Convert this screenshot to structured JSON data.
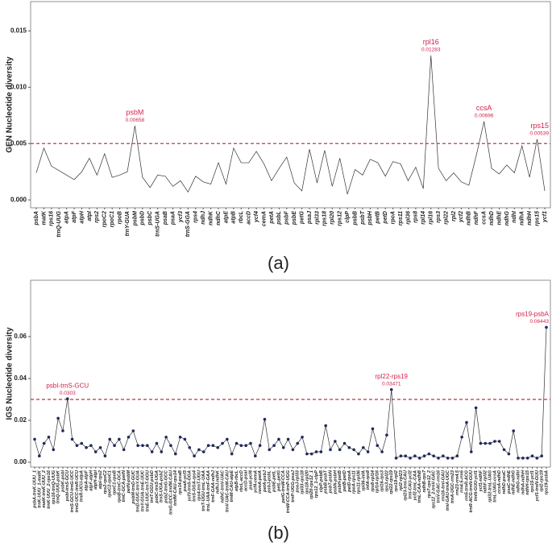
{
  "chart_data": [
    {
      "type": "line",
      "y_label": "GEN Nucleotide diversity",
      "caption": "(a)",
      "categories": [
        "psbA",
        "matK",
        "rps16",
        "trnQ-UUG",
        "atpA",
        "atpF",
        "atpH",
        "atpI",
        "rps2",
        "rpoC2",
        "rpoC1",
        "rpoB",
        "trnY-GUA",
        "psbM",
        "psbD",
        "psbC",
        "trnS-UGA",
        "psaB",
        "psaA",
        "ycf3",
        "trnS-GGA",
        "rps4",
        "ndhJ",
        "ndhK",
        "ndhC",
        "atpE",
        "atpB",
        "rbcL",
        "accD",
        "ycf4",
        "cemA",
        "petA",
        "psbL",
        "psbF",
        "psbE",
        "petG",
        "psaJ",
        "rpl33",
        "rps18",
        "rpl20",
        "rps12",
        "clpP",
        "psbB",
        "psbT",
        "psbH",
        "petB",
        "petD",
        "rpoA",
        "rps11",
        "rpl36",
        "rps8",
        "rpl14",
        "rpl16",
        "rps3",
        "rpl22",
        "rpl2",
        "ycf2",
        "ndhB",
        "ndhF",
        "ccsA",
        "ndhD",
        "ndhE",
        "ndhG",
        "ndhI",
        "ndhA",
        "ndhH",
        "rps15",
        "ycf1"
      ],
      "values": [
        0.0024,
        0.0046,
        0.003,
        0.0026,
        0.0022,
        0.0018,
        0.0025,
        0.0037,
        0.0022,
        0.0041,
        0.002,
        0.0022,
        0.0025,
        0.00658,
        0.002,
        0.0011,
        0.0022,
        0.0021,
        0.0012,
        0.0017,
        0.0007,
        0.0021,
        0.0016,
        0.0014,
        0.0033,
        0.0014,
        0.0046,
        0.0033,
        0.0033,
        0.0043,
        0.0032,
        0.0017,
        0.0028,
        0.0038,
        0.0015,
        0.0008,
        0.0045,
        0.0015,
        0.0044,
        0.0012,
        0.0037,
        0.0005,
        0.0027,
        0.0022,
        0.0036,
        0.0033,
        0.0021,
        0.0034,
        0.0032,
        0.0017,
        0.0029,
        0.001,
        0.01283,
        0.0028,
        0.0017,
        0.0024,
        0.0016,
        0.0013,
        0.004,
        0.00696,
        0.0028,
        0.0023,
        0.0031,
        0.0024,
        0.0048,
        0.002,
        0.00539,
        0.0008
      ],
      "color": "#333333",
      "annotation_color": "#d6204a",
      "threshold": 0.005,
      "threshold_color": "#b04050",
      "ylim": [
        -0.0007,
        0.0176
      ],
      "yticks": [
        {
          "value": 0,
          "label": "0.000"
        },
        {
          "value": 0.005,
          "label": "0.005"
        },
        {
          "value": 0.01,
          "label": "0.010"
        },
        {
          "value": 0.015,
          "label": "0.015"
        }
      ],
      "annotations": [
        {
          "text": "psbM"
        },
        {
          "text": "rpl16"
        },
        {
          "text": "ccsA"
        },
        {
          "text": "rps15"
        }
      ]
    },
    {
      "type": "line",
      "y_label": "IGS Nucleotide diversity",
      "caption": "(b)",
      "categories": [
        "psbA-trnK-UUU_1",
        "trnK-UUU_1-matK",
        "matK-trnK-UUU_2",
        "trnK-UUU_2-rps16",
        "rps16-trnQ-UUG",
        "trnQ-UUG-psbK",
        "psbK-psbI",
        "psbI-trnS-GCU",
        "trnS-GCU-trnG-UCC",
        "trnG-UCC-trnR-UCU",
        "trnR-UCU-atpA",
        "atpA-atpF",
        "atpF-atpH",
        "atpH-atpI",
        "atpI-rps2",
        "rps2-rpoC2",
        "rpoC2-rpoC1",
        "rpoC1-rpoB",
        "rpoB-trnC-GCA",
        "trnC-GCA-petN",
        "petN-psbM",
        "psbM-trnD-GUC",
        "trnD-GUC-trnY-GUA",
        "trnY-GUA-trnE-UUC",
        "trnE-UUC-trnT-GGU",
        "trnT-GGU-psbD",
        "psbC-trnS-UGA",
        "trnS-UGA-psbZ",
        "psbZ-trnG-GCC",
        "trnG-GCC-trnfM-CAU",
        "trnfM-CAU-rps14",
        "rps14-psaB",
        "psaA-ycf3",
        "ycf3-trnS-GGA",
        "trnS-GGA-rps4",
        "rps4-trnT-UGU",
        "trnT-UGU-trnL-UAA",
        "trnL-UAA-trnF-GAA",
        "trnF-GAA-ndhJ",
        "ndhJ-ndhK",
        "ndhC-trnV-UAC",
        "trnV-UAC-trnM-CAU",
        "trnM-CAU-atpE",
        "atpB-rbcL",
        "rbcL-accD",
        "accD-psaI",
        "psaI-ycf4",
        "ycf4-cemA",
        "cemA-petA",
        "petA-psbJ",
        "psbJ-psbL",
        "psbE-petL",
        "petL-petG",
        "petG-trnW-CCA",
        "trnW-CCA-trnP-UGG",
        "trnP-UGG-psaJ",
        "psaJ-rpl33",
        "rpl33-rps18",
        "rps18-rpl20",
        "rpl20-rps12_1",
        "rps12_1-clpP",
        "clpP-psbB",
        "psbB-psbT",
        "psbT-psbN",
        "psbN-psbH",
        "psbH-petB",
        "petB-petD",
        "petD-rpoA",
        "rpoA-rps11",
        "rps11-rpl36",
        "rpl36-infA",
        "infA-rps8",
        "rps8-rpl14",
        "rpl14-rpl16",
        "rpl16-rps3",
        "rps3-rpl22",
        "rpl22-rps19",
        "rps19-rpl2",
        "rpl2-rpl23",
        "rpl23-trnI-CAU",
        "trnI-CAU-ycf2",
        "ycf2-trnL-CAA",
        "trnL-CAA-ndhB",
        "ndhB-rps7",
        "rps7-rps12_2",
        "rps12_2-trnV-GAC",
        "trnV-GAC-rrn16",
        "rrn16-trnI-GAU",
        "trnI-GAU-trnA-UGC",
        "trnA-UGC-rrn23",
        "rrn23-rrn4.5",
        "rrn4.5-rrn5",
        "rrn5-trnR-ACG",
        "trnR-ACG-trnN-GUU",
        "trnN-GUU-ycf1",
        "ycf1-ndhF",
        "ndhF-rpl32",
        "rpl32-trnL-UAG",
        "trnL-UAG-ccsA",
        "ccsA-ndhD",
        "ndhD-psaC",
        "psaC-ndhE",
        "ndhE-ndhG",
        "ndhG-ndhI",
        "ndhA-ndhH",
        "ndhH-rps15",
        "rps15-ycf1",
        "ycf1-trnN-GUU",
        "rpl2-rps19",
        "rps19-psbA"
      ],
      "values": [
        0.011,
        0.003,
        0.009,
        0.012,
        0.006,
        0.021,
        0.015,
        0.0303,
        0.011,
        0.008,
        0.009,
        0.007,
        0.008,
        0.005,
        0.007,
        0.003,
        0.011,
        0.008,
        0.011,
        0.006,
        0.012,
        0.015,
        0.008,
        0.008,
        0.008,
        0.005,
        0.009,
        0.005,
        0.012,
        0.008,
        0.004,
        0.012,
        0.011,
        0.007,
        0.003,
        0.006,
        0.005,
        0.008,
        0.008,
        0.007,
        0.009,
        0.011,
        0.004,
        0.009,
        0.008,
        0.008,
        0.009,
        0.003,
        0.008,
        0.0205,
        0.006,
        0.008,
        0.011,
        0.007,
        0.011,
        0.006,
        0.009,
        0.012,
        0.004,
        0.004,
        0.005,
        0.005,
        0.0175,
        0.006,
        0.01,
        0.006,
        0.009,
        0.007,
        0.006,
        0.004,
        0.007,
        0.005,
        0.016,
        0.008,
        0.005,
        0.013,
        0.03471,
        0.002,
        0.003,
        0.003,
        0.002,
        0.003,
        0.002,
        0.003,
        0.004,
        0.003,
        0.002,
        0.003,
        0.002,
        0.002,
        0.003,
        0.012,
        0.019,
        0.005,
        0.026,
        0.009,
        0.009,
        0.009,
        0.01,
        0.01,
        0.006,
        0.004,
        0.015,
        0.002,
        0.002,
        0.002,
        0.003,
        0.002,
        0.003,
        0.06443
      ],
      "color": "#333333",
      "marker_color": "#1f2a5c",
      "annotation_color": "#d6204a",
      "threshold": 0.03,
      "threshold_color": "#c03030",
      "ylim": [
        -0.0023,
        0.0869
      ],
      "yticks": [
        {
          "value": 0,
          "label": "0.00"
        },
        {
          "value": 0.02,
          "label": "0.02"
        },
        {
          "value": 0.04,
          "label": "0.04"
        },
        {
          "value": 0.06,
          "label": "0.06"
        }
      ],
      "annotations": [
        {
          "text": "psbI-trnS-GCU"
        },
        {
          "text": "rpl22-rps19"
        },
        {
          "text": "rps19-psbA"
        }
      ]
    }
  ]
}
